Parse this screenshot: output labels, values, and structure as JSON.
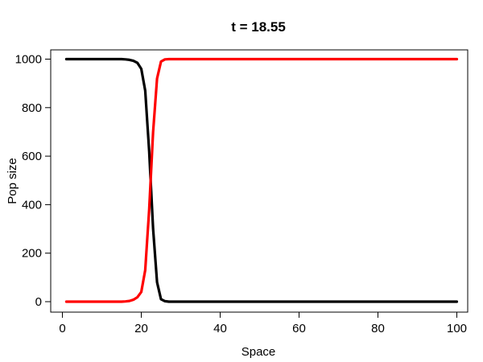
{
  "chart_data": {
    "type": "line",
    "title": "t = 18.55",
    "xlabel": "Space",
    "ylabel": "Pop size",
    "xlim": [
      1,
      100
    ],
    "ylim": [
      0,
      1000
    ],
    "x_ticks": [
      0,
      20,
      40,
      60,
      80,
      100
    ],
    "y_ticks": [
      0,
      200,
      400,
      600,
      800,
      1000
    ],
    "grid": false,
    "legend": "none",
    "series": [
      {
        "color": "#000000",
        "x": [
          1,
          15,
          16,
          17,
          18,
          19,
          20,
          21,
          22,
          23,
          24,
          25,
          26,
          27,
          28,
          100
        ],
        "y": [
          1000,
          1000,
          999,
          997,
          993,
          985,
          960,
          870,
          620,
          300,
          80,
          10,
          2,
          0,
          0,
          0
        ]
      },
      {
        "color": "#ff0000",
        "x": [
          1,
          15,
          16,
          17,
          18,
          19,
          20,
          21,
          22,
          23,
          24,
          25,
          26,
          27,
          28,
          100
        ],
        "y": [
          0,
          0,
          1,
          3,
          8,
          18,
          40,
          130,
          380,
          700,
          920,
          990,
          999,
          1000,
          1000,
          1000
        ]
      }
    ]
  }
}
